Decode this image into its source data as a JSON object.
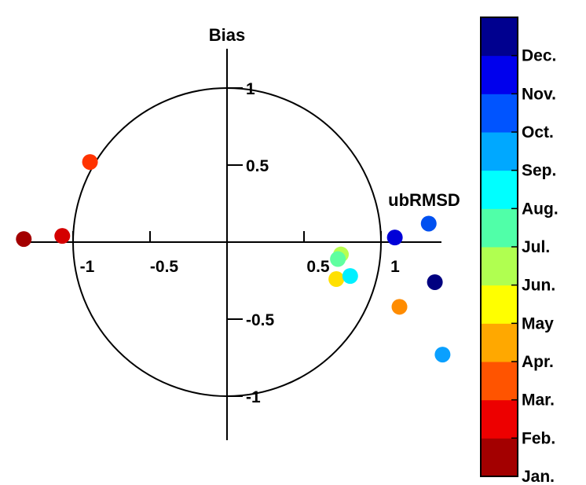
{
  "chart_data": {
    "type": "scatter",
    "title": "",
    "xlabel": "ubRMSD",
    "ylabel": "Bias",
    "xlim": [
      -1.3,
      1.4
    ],
    "ylim": [
      -1.3,
      1.3
    ],
    "grid": false,
    "reference_circle_radius": 1,
    "x_ticks": [
      {
        "value": -1,
        "label": "-1"
      },
      {
        "value": -0.5,
        "label": "-0.5"
      },
      {
        "value": 0.5,
        "label": "0.5"
      },
      {
        "value": 1,
        "label": "1"
      }
    ],
    "y_ticks": [
      {
        "value": 1,
        "label": "1"
      },
      {
        "value": 0.5,
        "label": "0.5"
      },
      {
        "value": -0.5,
        "label": "-0.5"
      },
      {
        "value": -1,
        "label": "-1"
      }
    ],
    "colorbar": {
      "labels": [
        "Jan.",
        "Feb.",
        "Mar.",
        "Apr.",
        "May",
        "Jun.",
        "Jul.",
        "Aug.",
        "Sep.",
        "Oct.",
        "Nov.",
        "Dec."
      ],
      "colors": [
        "#a30000",
        "#ed0000",
        "#ff5400",
        "#ffa800",
        "#ffff00",
        "#b0ff50",
        "#50ffa8",
        "#00ffff",
        "#00a8ff",
        "#0054ff",
        "#0000ed",
        "#00008f"
      ]
    },
    "points": [
      {
        "month": "Jan.",
        "x": -1.32,
        "y": 0.02,
        "color": "#a30000"
      },
      {
        "month": "Feb.",
        "x": -1.07,
        "y": 0.04,
        "color": "#d40000"
      },
      {
        "month": "Mar.",
        "x": -0.89,
        "y": 0.52,
        "color": "#ff3300"
      },
      {
        "month": "Apr.",
        "x": 1.12,
        "y": -0.42,
        "color": "#ff8c00"
      },
      {
        "month": "May",
        "x": 0.71,
        "y": -0.24,
        "color": "#ffe000"
      },
      {
        "month": "Jun.",
        "x": 0.74,
        "y": -0.08,
        "color": "#b8ff50"
      },
      {
        "month": "Jul.",
        "x": 0.72,
        "y": -0.11,
        "color": "#60ffa0"
      },
      {
        "month": "Aug.",
        "x": 0.8,
        "y": -0.22,
        "color": "#00f0ff"
      },
      {
        "month": "Sep.",
        "x": 1.4,
        "y": -0.73,
        "color": "#0aa0ff"
      },
      {
        "month": "Oct.",
        "x": 1.31,
        "y": 0.12,
        "color": "#0050f0"
      },
      {
        "month": "Nov.",
        "x": 1.09,
        "y": 0.03,
        "color": "#0000d8"
      },
      {
        "month": "Dec.",
        "x": 1.35,
        "y": -0.26,
        "color": "#000080"
      }
    ]
  }
}
